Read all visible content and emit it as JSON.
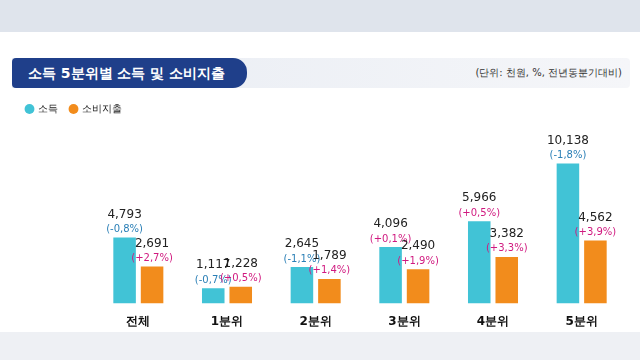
{
  "chart_data": {
    "type": "bar",
    "title": "소득 5분위별 소득 및 소비지출",
    "subtitle": "(단위: 천원, %, 전년동분기대비)",
    "categories": [
      "전체",
      "1분위",
      "2분위",
      "3분위",
      "4분위",
      "5분위"
    ],
    "series": [
      {
        "name": "소득",
        "color": "#41c3d6",
        "values": [
          4793,
          1117,
          2645,
          4096,
          5966,
          10138
        ],
        "value_labels": [
          "4,793",
          "1,117",
          "2,645",
          "4,096",
          "5,966",
          "10,138"
        ],
        "changes": [
          -0.8,
          -0.7,
          -1.1,
          0.1,
          0.5,
          -1.8
        ],
        "change_labels": [
          "(-0,8%)",
          "(-0,7%)",
          "(-1,1%)",
          "(+0,1%)",
          "(+0,5%)",
          "(-1,8%)"
        ]
      },
      {
        "name": "소비지출",
        "color": "#f28c1c",
        "values": [
          2691,
          1228,
          1789,
          2490,
          3382,
          4562
        ],
        "value_labels": [
          "2,691",
          "1,228",
          "1,789",
          "2,490",
          "3,382",
          "4,562"
        ],
        "changes": [
          2.7,
          0.5,
          1.4,
          1.9,
          3.3,
          3.9
        ],
        "change_labels": [
          "(+2,7%)",
          "(+0,5%)",
          "(+1,4%)",
          "(+1,9%)",
          "(+3,3%)",
          "(+3,9%)"
        ]
      }
    ],
    "ylim": [
      0,
      13000
    ],
    "grid": false,
    "legend": "top-left",
    "data_labels": true,
    "tick_labels": "x"
  }
}
